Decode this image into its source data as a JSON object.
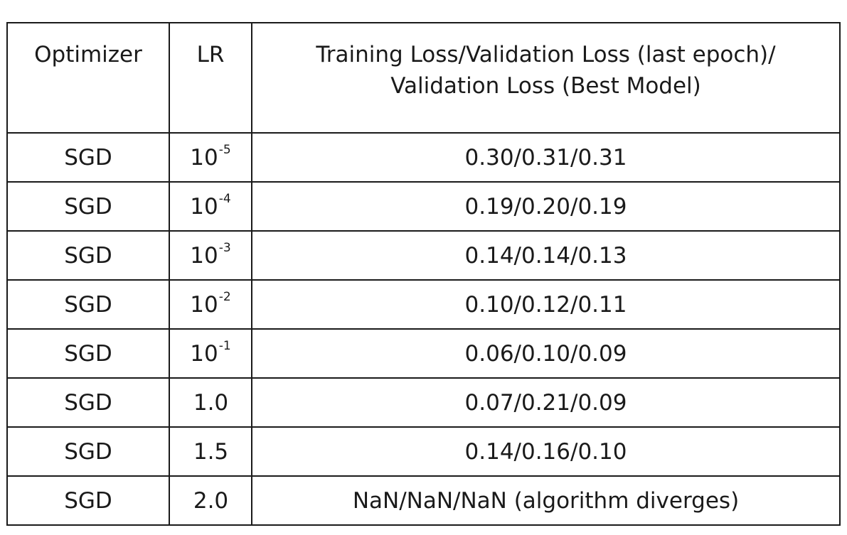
{
  "table": {
    "headers": {
      "optimizer": "Optimizer",
      "lr": "LR",
      "loss_line1": "Training Loss/Validation Loss (last epoch)/",
      "loss_line2": "Validation Loss (Best Model)"
    },
    "rows": [
      {
        "optimizer": "SGD",
        "lr_base": "10",
        "lr_exp": "-5",
        "lr": "",
        "loss": "0.30/0.31/0.31"
      },
      {
        "optimizer": "SGD",
        "lr_base": "10",
        "lr_exp": "-4",
        "lr": "",
        "loss": "0.19/0.20/0.19"
      },
      {
        "optimizer": "SGD",
        "lr_base": "10",
        "lr_exp": "-3",
        "lr": "",
        "loss": "0.14/0.14/0.13"
      },
      {
        "optimizer": "SGD",
        "lr_base": "10",
        "lr_exp": "-2",
        "lr": "",
        "loss": "0.10/0.12/0.11"
      },
      {
        "optimizer": "SGD",
        "lr_base": "10",
        "lr_exp": "-1",
        "lr": "",
        "loss": "0.06/0.10/0.09"
      },
      {
        "optimizer": "SGD",
        "lr_base": "",
        "lr_exp": "",
        "lr": "1.0",
        "loss": "0.07/0.21/0.09"
      },
      {
        "optimizer": "SGD",
        "lr_base": "",
        "lr_exp": "",
        "lr": "1.5",
        "loss": "0.14/0.16/0.10"
      },
      {
        "optimizer": "SGD",
        "lr_base": "",
        "lr_exp": "",
        "lr": "2.0",
        "loss": "NaN/NaN/NaN (algorithm diverges)"
      }
    ]
  }
}
